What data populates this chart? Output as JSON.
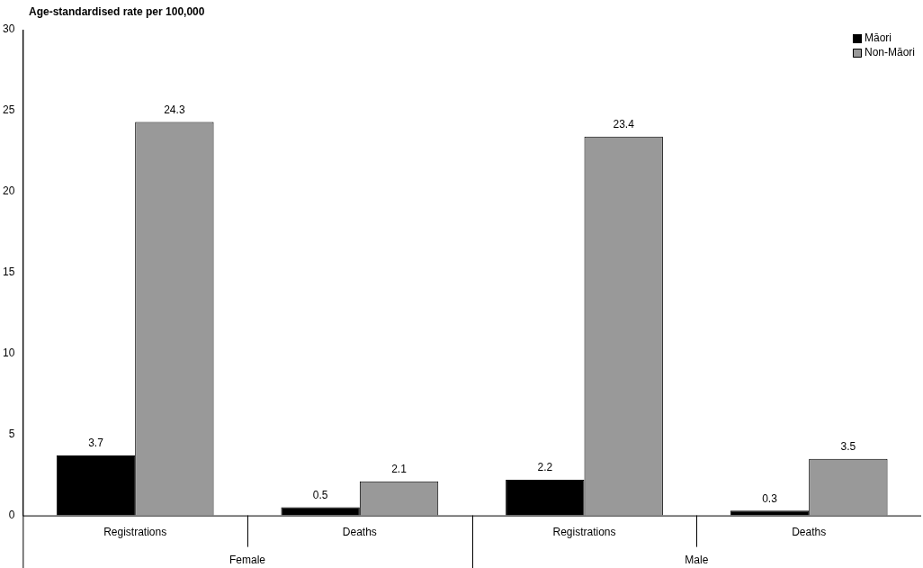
{
  "chart_data": {
    "type": "bar",
    "ylabel": "Age-standardised rate per 100,000",
    "categories": [
      "Registrations",
      "Deaths",
      "Registrations",
      "Deaths"
    ],
    "series": [
      {
        "name": "Māori",
        "color": "#000000",
        "values": [
          3.7,
          0.5,
          2.2,
          0.3
        ]
      },
      {
        "name": "Non-Māori",
        "color": "#999999",
        "values": [
          24.3,
          2.1,
          23.4,
          3.5
        ]
      }
    ],
    "annotations": [
      "Female",
      "Male"
    ],
    "ylim": [
      0,
      30
    ],
    "yticks": [
      0,
      5,
      10,
      15,
      20,
      25,
      30
    ],
    "grid": false,
    "legend": "top right",
    "data_labels": true
  }
}
